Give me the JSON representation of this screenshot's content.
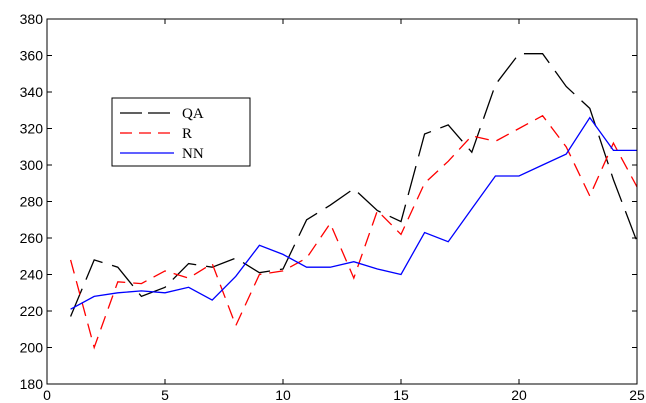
{
  "chart_data": {
    "type": "line",
    "title": "",
    "xlabel": "",
    "ylabel": "",
    "xlim": [
      0,
      25
    ],
    "ylim": [
      180,
      380
    ],
    "xticks": [
      0,
      5,
      10,
      15,
      20,
      25
    ],
    "yticks": [
      180,
      200,
      220,
      240,
      260,
      280,
      300,
      320,
      340,
      360,
      380
    ],
    "grid": false,
    "legend_position": "top-left",
    "x": [
      1,
      2,
      3,
      4,
      5,
      6,
      7,
      8,
      9,
      10,
      11,
      12,
      13,
      14,
      15,
      16,
      17,
      18,
      19,
      20,
      21,
      22,
      23,
      24,
      25
    ],
    "series": [
      {
        "name": "QA",
        "color": "#000000",
        "dash": "long-dash",
        "values": [
          217,
          248,
          244,
          228,
          233,
          246,
          244,
          249,
          241,
          243,
          270,
          278,
          287,
          275,
          269,
          317,
          322,
          307,
          344,
          361,
          361,
          343,
          331,
          292,
          258
        ]
      },
      {
        "name": "R",
        "color": "#ff0000",
        "dash": "dash",
        "values": [
          248,
          200,
          236,
          235,
          242,
          238,
          246,
          212,
          240,
          242,
          249,
          268,
          238,
          275,
          262,
          290,
          302,
          316,
          313,
          320,
          327,
          310,
          283,
          312,
          288
        ]
      },
      {
        "name": "NN",
        "color": "#0000ff",
        "dash": "solid",
        "values": [
          221,
          228,
          230,
          231,
          230,
          233,
          226,
          239,
          256,
          251,
          244,
          244,
          247,
          243,
          240,
          263,
          258,
          276,
          294,
          294,
          300,
          306,
          326,
          308,
          308
        ]
      }
    ]
  }
}
